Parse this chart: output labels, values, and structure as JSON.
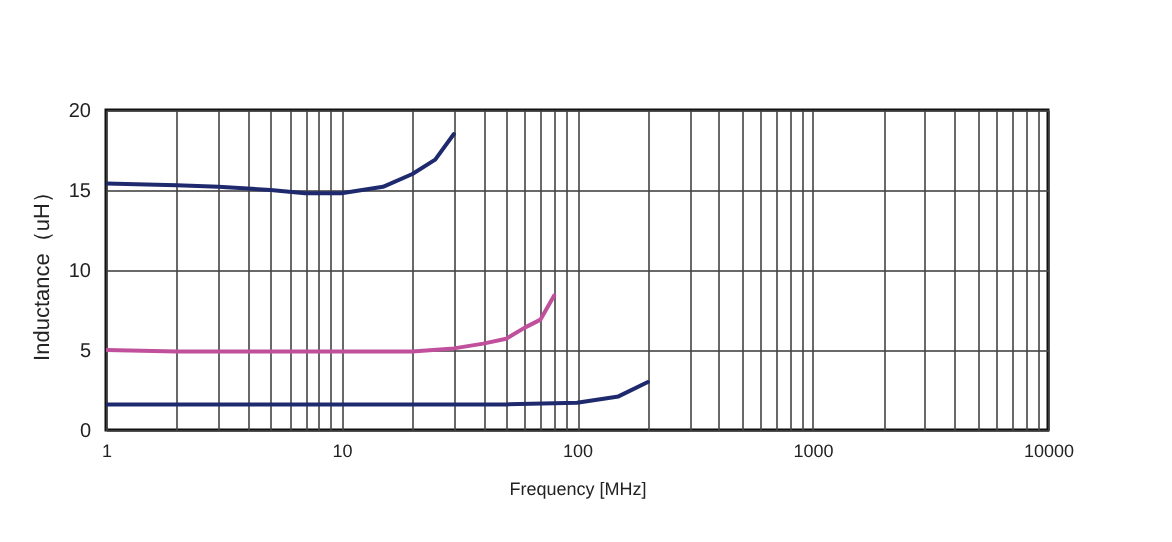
{
  "chart_data": {
    "type": "line",
    "xlabel": "Frequency [MHz]",
    "ylabel": "Inductance（uH）",
    "log": "x",
    "grid": true,
    "marker": "none",
    "line_style": "solid",
    "xlim": [
      1,
      10000
    ],
    "ylim": [
      0,
      20
    ],
    "yticks": [
      0,
      5,
      10,
      15,
      20
    ],
    "xticks": [
      1,
      {
        "value": 2,
        "label": null
      },
      {
        "value": 3,
        "label": null
      },
      {
        "value": 4,
        "label": null
      },
      {
        "value": 5,
        "label": null
      },
      {
        "value": 6,
        "label": null
      },
      {
        "value": 7,
        "label": null
      },
      {
        "value": 8,
        "label": null
      },
      {
        "value": 9,
        "label": null
      },
      10,
      {
        "value": 20,
        "label": null
      },
      {
        "value": 30,
        "label": null
      },
      {
        "value": 40,
        "label": null
      },
      {
        "value": 50,
        "label": null
      },
      {
        "value": 60,
        "label": null
      },
      {
        "value": 70,
        "label": null
      },
      {
        "value": 80,
        "label": null
      },
      {
        "value": 90,
        "label": null
      },
      100,
      {
        "value": 200,
        "label": null
      },
      {
        "value": 300,
        "label": null
      },
      {
        "value": 400,
        "label": null
      },
      {
        "value": 500,
        "label": null
      },
      {
        "value": 600,
        "label": null
      },
      {
        "value": 700,
        "label": null
      },
      {
        "value": 800,
        "label": null
      },
      {
        "value": 900,
        "label": null
      },
      1000,
      {
        "value": 2000,
        "label": null
      },
      {
        "value": 3000,
        "label": null
      },
      {
        "value": 4000,
        "label": null
      },
      {
        "value": 5000,
        "label": null
      },
      {
        "value": 6000,
        "label": null
      },
      {
        "value": 7000,
        "label": null
      },
      {
        "value": 8000,
        "label": null
      },
      {
        "value": 9000,
        "label": null
      },
      10000
    ],
    "series": [
      {
        "color": "#1f2a6e",
        "x": [
          1,
          2,
          3,
          5,
          7,
          10,
          15,
          20,
          25,
          30
        ],
        "values": [
          15.4,
          15.3,
          15.2,
          15.0,
          14.8,
          14.8,
          15.2,
          16.0,
          16.9,
          18.5
        ]
      },
      {
        "color": "#c0509b",
        "x": [
          1,
          2,
          5,
          10,
          20,
          30,
          40,
          50,
          60,
          70,
          80
        ],
        "values": [
          5.0,
          4.9,
          4.9,
          4.9,
          4.9,
          5.1,
          5.4,
          5.7,
          6.4,
          6.9,
          8.4
        ]
      },
      {
        "color": "#1f2a6e",
        "x": [
          1,
          10,
          50,
          100,
          150,
          200
        ],
        "values": [
          1.6,
          1.6,
          1.6,
          1.7,
          2.1,
          3.0
        ]
      }
    ]
  }
}
